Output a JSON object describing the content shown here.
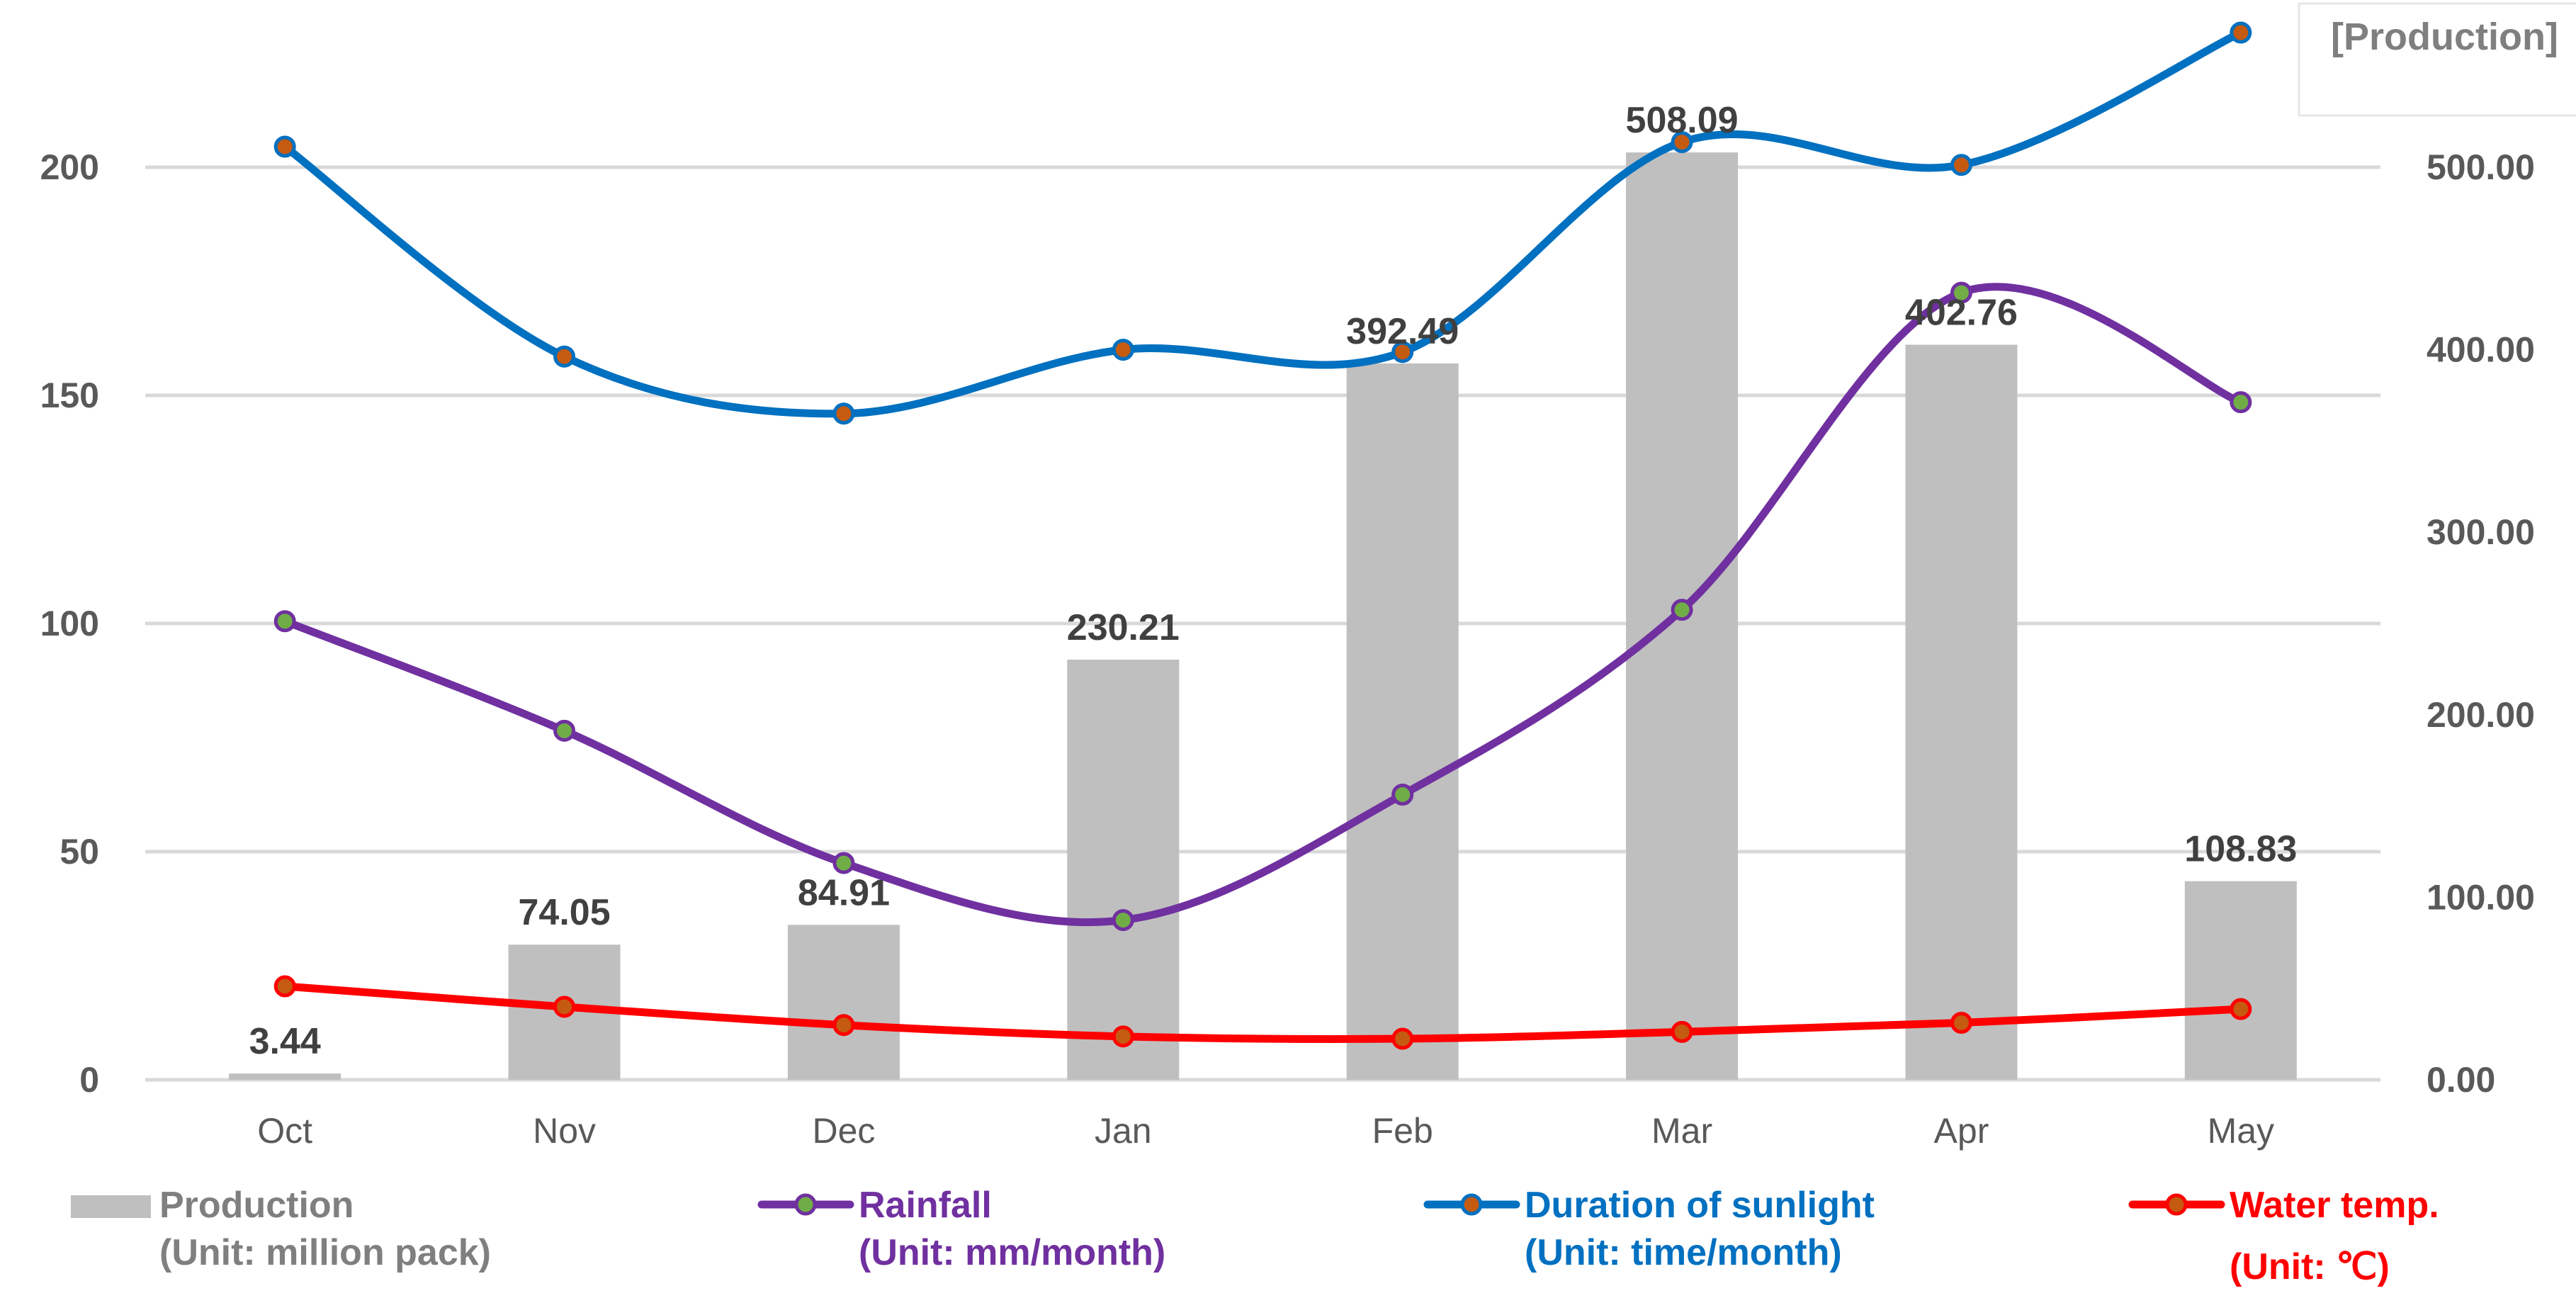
{
  "chart_data": {
    "type": "bar+line",
    "categories": [
      "Oct",
      "Nov",
      "Dec",
      "Jan",
      "Feb",
      "Mar",
      "Apr",
      "May"
    ],
    "left_axis": {
      "min": 0,
      "max": 200,
      "ticks": [
        "0",
        "50",
        "100",
        "150",
        "200"
      ]
    },
    "right_axis": {
      "title": "[Production]",
      "min": 0,
      "max": 500,
      "ticks": [
        "0.00",
        "100.00",
        "200.00",
        "300.00",
        "400.00",
        "500.00"
      ]
    },
    "series": [
      {
        "name": "Production",
        "unit": "(Unit: million pack)",
        "type": "bar",
        "axis": "right",
        "color": "#BFBFBF",
        "values": [
          3.44,
          74.05,
          84.91,
          230.21,
          392.49,
          508.09,
          402.76,
          108.83
        ],
        "labels": [
          "3.44",
          "74.05",
          "84.91",
          "230.21",
          "392.49",
          "508.09",
          "402.76",
          "108.83"
        ]
      },
      {
        "name": "Rainfall",
        "unit": "(Unit: mm/month)",
        "type": "line",
        "axis": "left",
        "color": "#7030A0",
        "marker_color": "#70AD47",
        "values": [
          100.5,
          76.5,
          47.5,
          35,
          62.5,
          103,
          172.5,
          148.5
        ]
      },
      {
        "name": "Duration of sunlight",
        "unit": "(Unit: time/month)",
        "type": "line",
        "axis": "left",
        "color": "#0070C0",
        "marker_color": "#C55A11",
        "values": [
          204.5,
          158.5,
          146,
          160,
          159.5,
          205.5,
          200.5,
          229.5
        ]
      },
      {
        "name": "Water temp.",
        "unit": "(Unit: ℃)",
        "type": "line",
        "axis": "left",
        "color": "#FF0000",
        "marker_color": "#C55A11",
        "values": [
          20.5,
          16,
          12,
          9.5,
          9,
          10.5,
          12.5,
          15.5
        ]
      }
    ],
    "grid": true,
    "legend_position": "bottom"
  }
}
